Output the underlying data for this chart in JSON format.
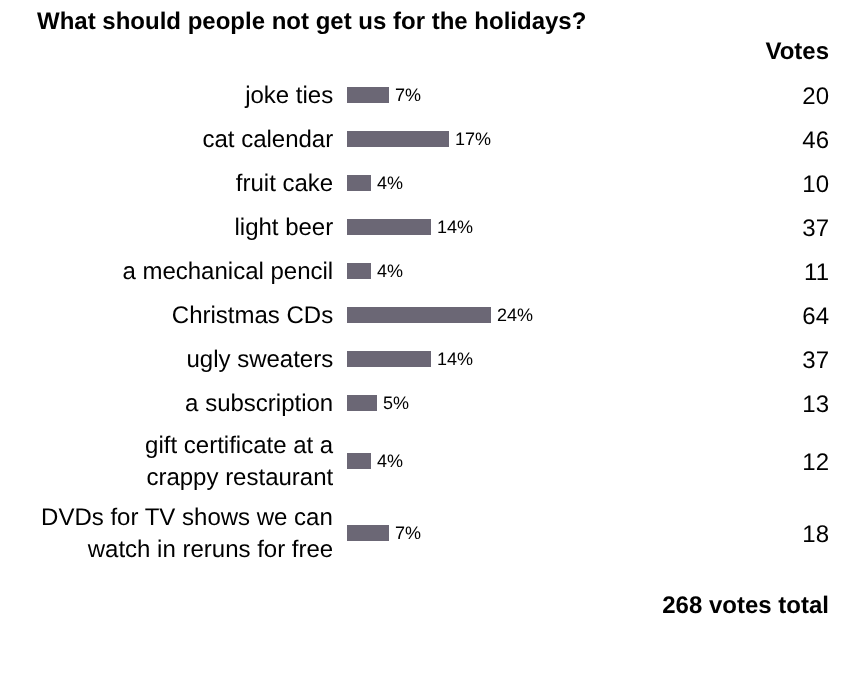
{
  "chart_data": {
    "type": "bar",
    "orientation": "horizontal",
    "title": "What should people not get us for the holidays?",
    "categories": [
      "joke ties",
      "cat calendar",
      "fruit cake",
      "light beer",
      "a mechanical pencil",
      "Christmas CDs",
      "ugly sweaters",
      "a subscription",
      "gift certificate at a crappy restaurant",
      "DVDs for TV shows we can watch in reruns for free"
    ],
    "values": [
      7,
      17,
      4,
      14,
      4,
      24,
      14,
      5,
      4,
      7
    ],
    "value_labels": [
      "7%",
      "17%",
      "4%",
      "14%",
      "4%",
      "24%",
      "14%",
      "5%",
      "4%",
      "7%"
    ],
    "color": "#6b6775",
    "annotations": [
      "Votes",
      "20",
      "46",
      "10",
      "37",
      "11",
      "64",
      "37",
      "13",
      "12",
      "18",
      "268 votes total"
    ]
  }
}
